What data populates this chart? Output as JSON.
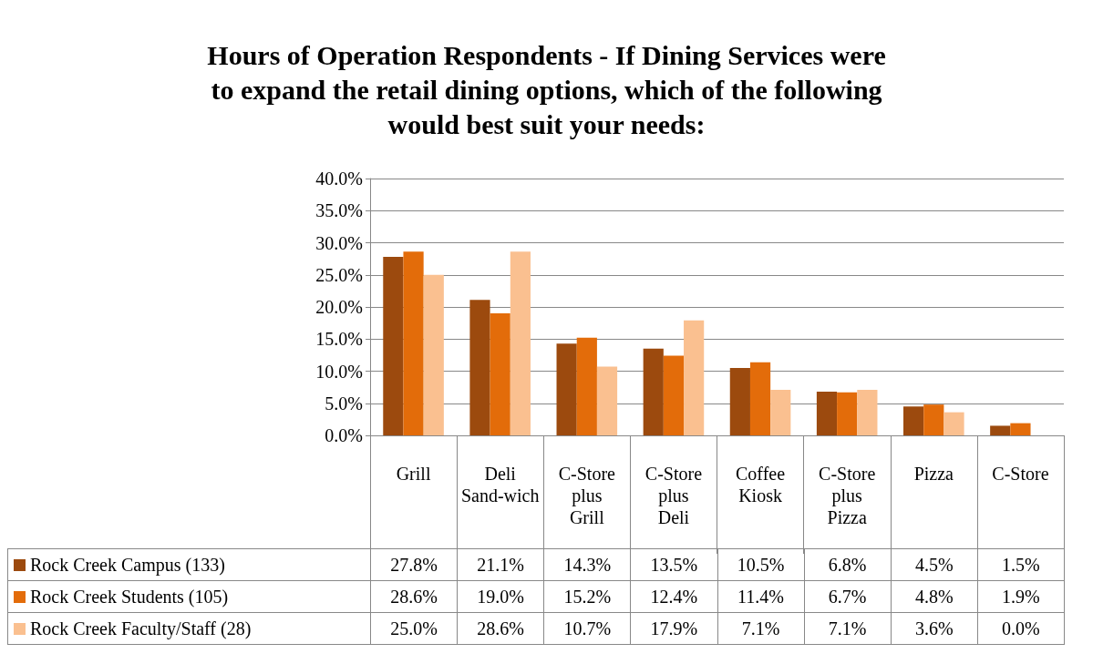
{
  "chart_data": {
    "type": "bar",
    "title": "Hours of Operation Respondents - If Dining Services were\nto expand the retail dining options, which of the following\nwould best suit your needs:",
    "categories": [
      "Grill",
      "Deli Sand-wich",
      "C-Store plus Grill",
      "C-Store plus Deli",
      "Coffee Kiosk",
      "C-Store plus Pizza",
      "Pizza",
      "C-Store"
    ],
    "series": [
      {
        "name": "Rock Creek Campus (133)",
        "color": "#9c4a0e",
        "values": [
          27.8,
          21.1,
          14.3,
          13.5,
          10.5,
          6.8,
          4.5,
          1.5
        ],
        "value_labels": [
          "27.8%",
          "21.1%",
          "14.3%",
          "13.5%",
          "10.5%",
          "6.8%",
          "4.5%",
          "1.5%"
        ]
      },
      {
        "name": "Rock Creek Students (105)",
        "color": "#e36c0a",
        "values": [
          28.6,
          19.0,
          15.2,
          12.4,
          11.4,
          6.7,
          4.8,
          1.9
        ],
        "value_labels": [
          "28.6%",
          "19.0%",
          "15.2%",
          "12.4%",
          "11.4%",
          "6.7%",
          "4.8%",
          "1.9%"
        ]
      },
      {
        "name": "Rock Creek Faculty/Staff (28)",
        "color": "#fac090",
        "values": [
          25.0,
          28.6,
          10.7,
          17.9,
          7.1,
          7.1,
          3.6,
          0.0
        ],
        "value_labels": [
          "25.0%",
          "28.6%",
          "10.7%",
          "17.9%",
          "7.1%",
          "7.1%",
          "3.6%",
          "0.0%"
        ]
      }
    ],
    "ylim": [
      0,
      40
    ],
    "yticks": [
      {
        "value": 0,
        "label": "0.0%"
      },
      {
        "value": 5,
        "label": "5.0%"
      },
      {
        "value": 10,
        "label": "10.0%"
      },
      {
        "value": 15,
        "label": "15.0%"
      },
      {
        "value": 20,
        "label": "20.0%"
      },
      {
        "value": 25,
        "label": "25.0%"
      },
      {
        "value": 30,
        "label": "30.0%"
      },
      {
        "value": 35,
        "label": "35.0%"
      },
      {
        "value": 40,
        "label": "40.0%"
      }
    ],
    "grid": "y",
    "legend": "bottom"
  }
}
